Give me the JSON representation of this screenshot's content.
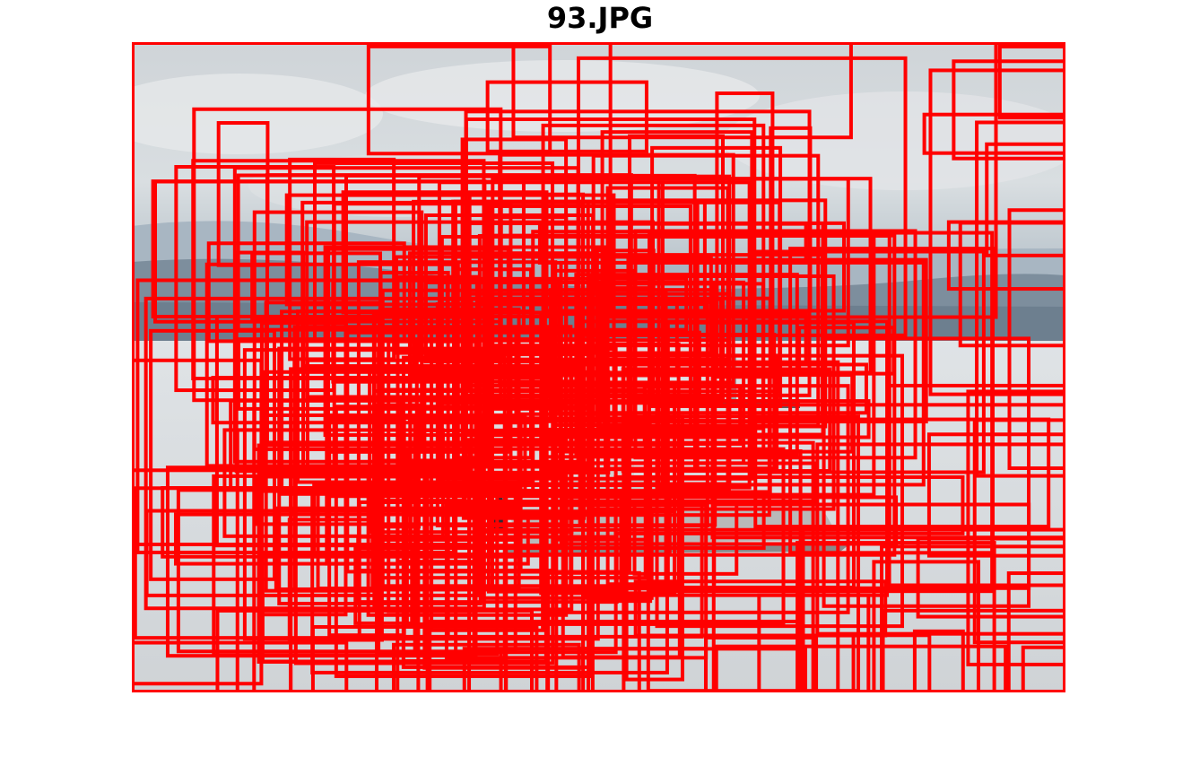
{
  "figure": {
    "title": "93.JPG"
  },
  "image": {
    "subject": "photograph-lake-with-boat-and-distant-shore",
    "overlay_color": "#ff0000"
  }
}
